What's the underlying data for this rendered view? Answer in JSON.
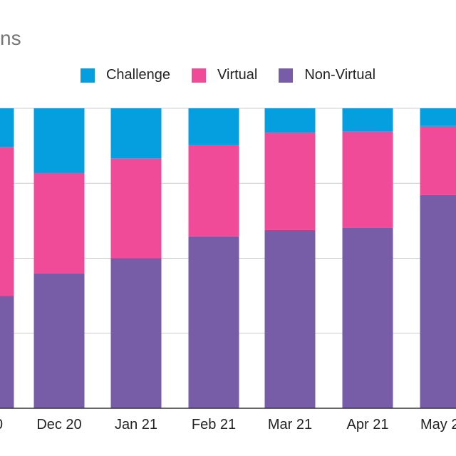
{
  "chart_data": {
    "type": "bar",
    "stacked": true,
    "title": "ns",
    "categories": [
      "0",
      "Dec 20",
      "Jan 21",
      "Feb 21",
      "Mar 21",
      "Apr 21",
      "May 2"
    ],
    "series": [
      {
        "name": "Non-Virtual",
        "color": "#775CA8",
        "values": [
          0.375,
          0.449,
          0.5,
          0.573,
          0.594,
          0.601,
          0.711
        ]
      },
      {
        "name": "Virtual",
        "color": "#EF4B98",
        "values": [
          0.496,
          0.336,
          0.333,
          0.305,
          0.325,
          0.322,
          0.23
        ]
      },
      {
        "name": "Challenge",
        "color": "#059FE0",
        "values": [
          0.129,
          0.215,
          0.167,
          0.122,
          0.081,
          0.077,
          0.059
        ]
      }
    ],
    "ylim": [
      0,
      1
    ],
    "grid": true,
    "legend_position": "top-center",
    "legend_order": [
      "Challenge",
      "Virtual",
      "Non-Virtual"
    ]
  }
}
